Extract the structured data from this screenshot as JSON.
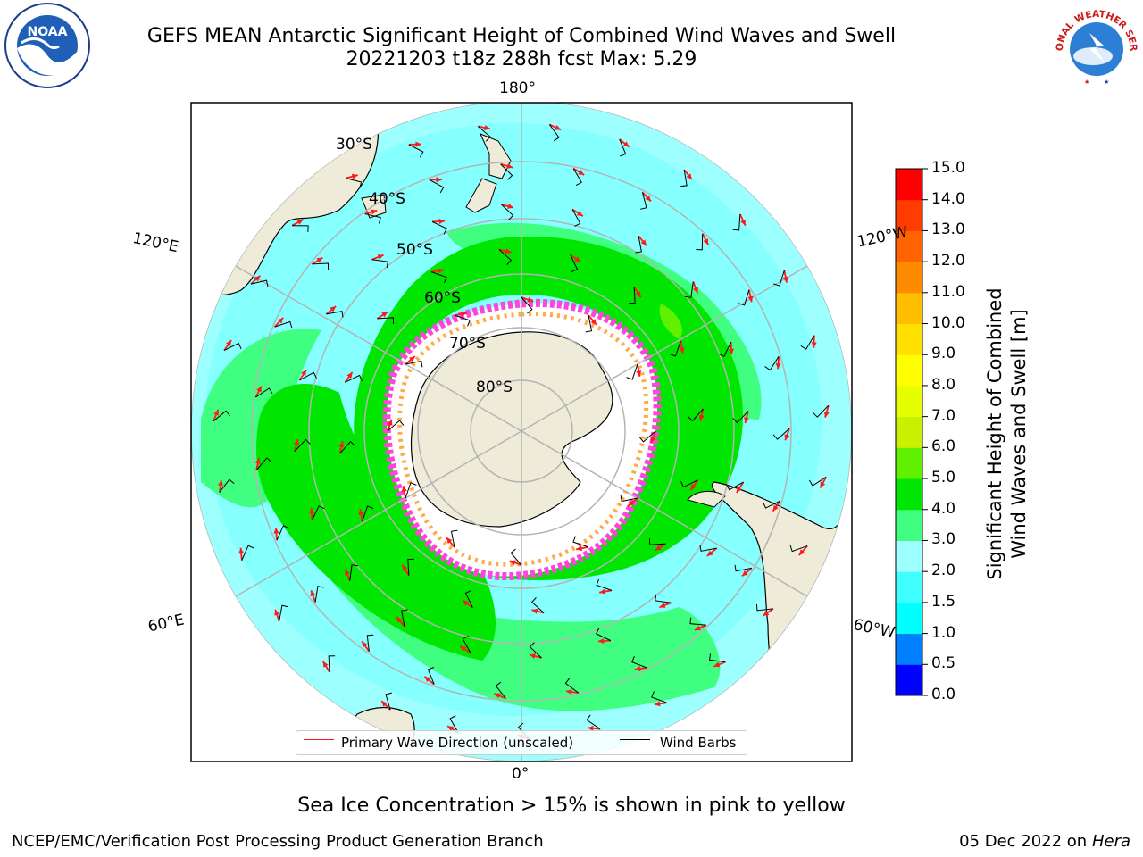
{
  "title": {
    "line1": "GEFS MEAN Antarctic Significant Height of Combined Wind Waves and Swell",
    "line2": "20221203 t18z 288h fcst   Max: 5.29"
  },
  "map": {
    "projection": "south-polar-stereographic",
    "longitude_labels": [
      "180°",
      "120°E",
      "120°W",
      "60°E",
      "60°W",
      "0°"
    ],
    "latitude_labels": [
      "30°S",
      "40°S",
      "50°S",
      "60°S",
      "70°S",
      "80°S"
    ],
    "colors": {
      "land": "#efebd9",
      "grid": "#b4b4b4",
      "wave_arrow": "#ff1a1a",
      "wind_barb": "#000000"
    }
  },
  "legend": {
    "wave_direction_label": "Primary Wave Direction (unscaled)",
    "wind_barbs_label": "Wind Barbs"
  },
  "colorbar": {
    "title_line1": "Significant Height of Combined",
    "title_line2": "Wind Waves and Swell [m]",
    "ticks": [
      "0.0",
      "0.5",
      "1.0",
      "1.5",
      "2.0",
      "3.0",
      "4.0",
      "5.0",
      "6.0",
      "7.0",
      "8.0",
      "9.0",
      "10.0",
      "11.0",
      "12.0",
      "13.0",
      "14.0",
      "15.0"
    ],
    "colors": [
      "#0000ff",
      "#0080ff",
      "#00ffff",
      "#40ffff",
      "#9effff",
      "#40ff80",
      "#00e600",
      "#60f000",
      "#c8f000",
      "#e6ff00",
      "#ffff00",
      "#ffe000",
      "#ffbf00",
      "#ff8c00",
      "#ff6400",
      "#ff3c00",
      "#ff0000"
    ]
  },
  "caption": "Sea Ice Concentration > 15% is shown in pink to yellow",
  "footer": {
    "left": "NCEP/EMC/Verification Post Processing Product Generation Branch",
    "right_date": "05 Dec 2022 on",
    "right_machine": "Hera"
  },
  "logos": {
    "noaa_text": "NOAA",
    "nws_text": "NATIONAL WEATHER SERVICE"
  }
}
